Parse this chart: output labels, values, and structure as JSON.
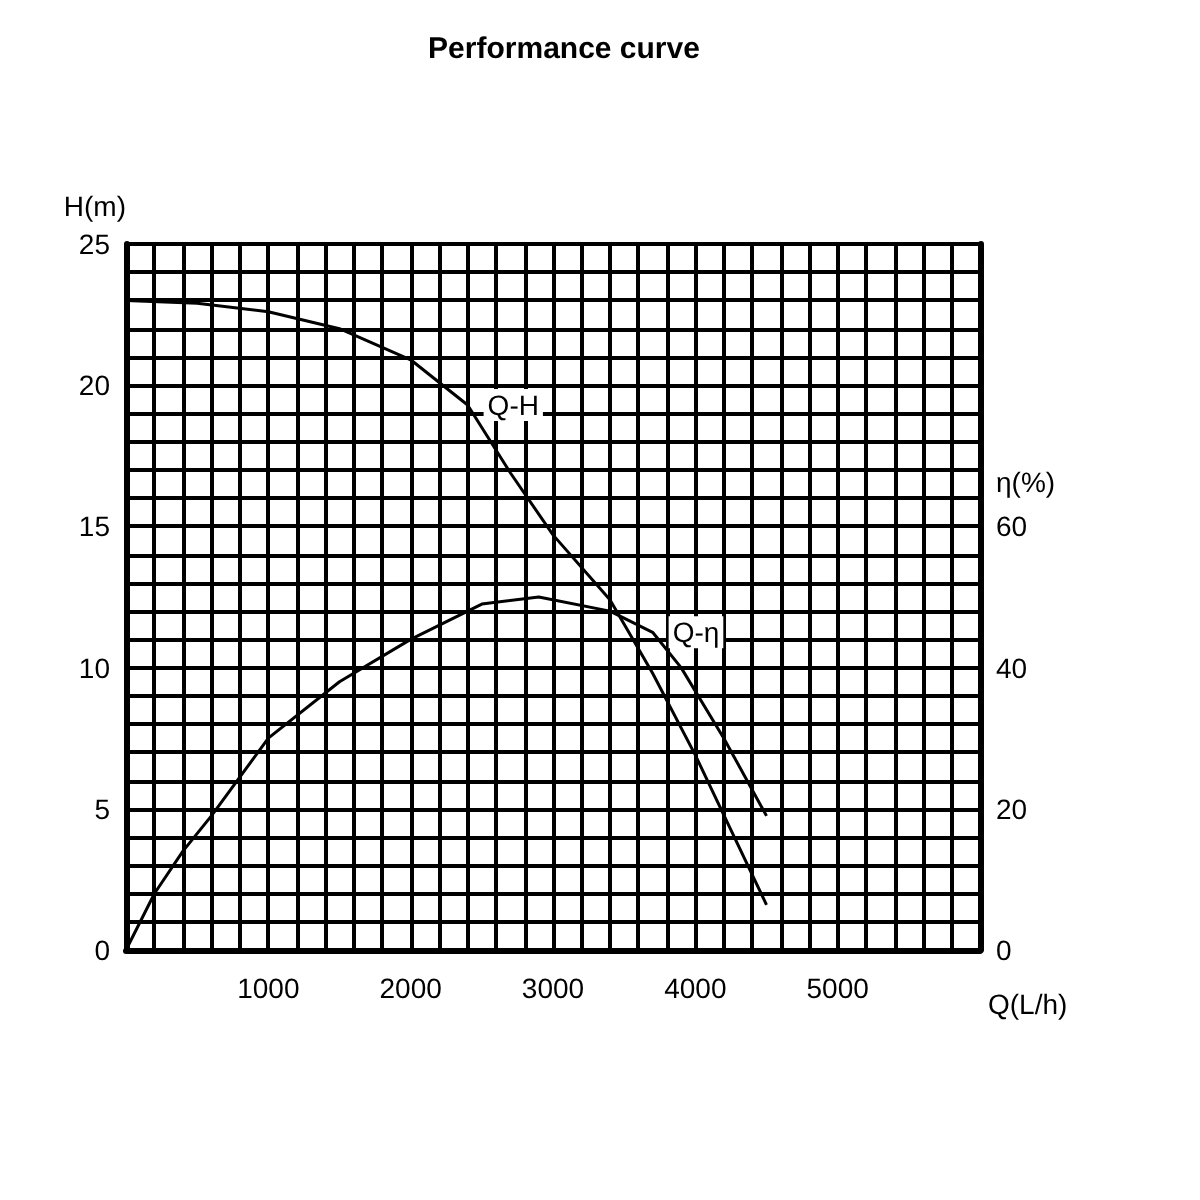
{
  "chart_data": {
    "type": "line",
    "title": "Performance curve",
    "xlabel": "Q(L/h)",
    "ylabel": "H(m)",
    "y2label": "η(%)",
    "series": [
      {
        "name": "Q-H",
        "color": "#000000",
        "x": [
          0,
          500,
          1000,
          1500,
          2000,
          2400,
          2700,
          3000,
          3400,
          3700,
          4000,
          4500
        ],
        "values": [
          23,
          22.9,
          22.6,
          22.0,
          20.9,
          19.3,
          16.9,
          14.7,
          12.4,
          9.8,
          6.9,
          1.6
        ]
      },
      {
        "name": "Q-η",
        "color": "#000000",
        "axis": "y2",
        "x": [
          0,
          200,
          400,
          600,
          1000,
          1500,
          2000,
          2500,
          2900,
          3400,
          3700,
          3900,
          4200,
          4500
        ],
        "values": [
          0,
          8,
          14,
          19,
          30,
          38,
          44,
          49,
          50,
          48,
          45,
          40,
          30,
          19
        ]
      }
    ],
    "xlim": [
      0,
      6000
    ],
    "xticks": [
      {
        "value": 0,
        "label": null
      },
      {
        "value": 200,
        "label": null
      },
      {
        "value": 400,
        "label": null
      },
      {
        "value": 600,
        "label": null
      },
      {
        "value": 800,
        "label": null
      },
      1000,
      {
        "value": 1200,
        "label": null
      },
      {
        "value": 1400,
        "label": null
      },
      {
        "value": 1600,
        "label": null
      },
      {
        "value": 1800,
        "label": null
      },
      2000,
      {
        "value": 2200,
        "label": null
      },
      {
        "value": 2400,
        "label": null
      },
      {
        "value": 2600,
        "label": null
      },
      {
        "value": 2800,
        "label": null
      },
      3000,
      {
        "value": 3200,
        "label": null
      },
      {
        "value": 3400,
        "label": null
      },
      {
        "value": 3600,
        "label": null
      },
      {
        "value": 3800,
        "label": null
      },
      4000,
      {
        "value": 4200,
        "label": null
      },
      {
        "value": 4400,
        "label": null
      },
      {
        "value": 4600,
        "label": null
      },
      {
        "value": 4800,
        "label": null
      },
      5000,
      {
        "value": 5200,
        "label": null
      },
      {
        "value": 5400,
        "label": null
      },
      {
        "value": 5600,
        "label": null
      },
      {
        "value": 5800,
        "label": null
      },
      {
        "value": 6000,
        "label": null
      }
    ],
    "ylim": [
      0,
      25
    ],
    "yticks": [
      0,
      {
        "value": 1,
        "label": null
      },
      {
        "value": 2,
        "label": null
      },
      {
        "value": 3,
        "label": null
      },
      {
        "value": 4,
        "label": null
      },
      5,
      {
        "value": 6,
        "label": null
      },
      {
        "value": 7,
        "label": null
      },
      {
        "value": 8,
        "label": null
      },
      {
        "value": 9,
        "label": null
      },
      10,
      {
        "value": 11,
        "label": null
      },
      {
        "value": 12,
        "label": null
      },
      {
        "value": 13,
        "label": null
      },
      {
        "value": 14,
        "label": null
      },
      15,
      {
        "value": 16,
        "label": null
      },
      {
        "value": 17,
        "label": null
      },
      {
        "value": 18,
        "label": null
      },
      {
        "value": 19,
        "label": null
      },
      20,
      {
        "value": 21,
        "label": null
      },
      {
        "value": 22,
        "label": null
      },
      {
        "value": 23,
        "label": null
      },
      {
        "value": 24,
        "label": null
      },
      25
    ],
    "y2lim": [
      0,
      100
    ],
    "y2ticks": [
      0,
      20,
      40,
      60
    ],
    "grid": true,
    "legend": false,
    "marker": "none",
    "line_style": "solid"
  }
}
